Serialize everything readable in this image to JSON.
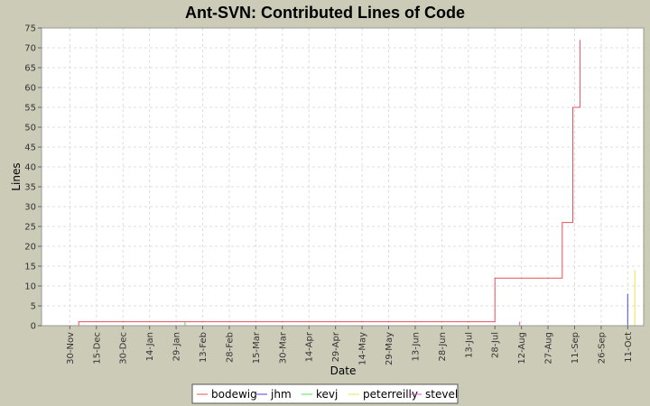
{
  "chart_data": {
    "type": "line",
    "title": "Ant-SVN: Contributed Lines of Code",
    "xlabel": "Date",
    "ylabel": "Lines",
    "ylim": [
      0,
      75
    ],
    "y_ticks": [
      0,
      5,
      10,
      15,
      20,
      25,
      30,
      35,
      40,
      45,
      50,
      55,
      60,
      65,
      70,
      75
    ],
    "x_ticks": [
      "30-Nov",
      "15-Dec",
      "30-Dec",
      "14-Jan",
      "29-Jan",
      "13-Feb",
      "28-Feb",
      "15-Mar",
      "30-Mar",
      "14-Apr",
      "29-Apr",
      "14-May",
      "29-May",
      "13-Jun",
      "28-Jun",
      "13-Jul",
      "28-Jul",
      "12-Aug",
      "27-Aug",
      "11-Sep",
      "26-Sep",
      "11-Oct"
    ],
    "x_tick_day_offsets": [
      0,
      15,
      30,
      45,
      60,
      75,
      90,
      105,
      120,
      135,
      150,
      165,
      180,
      195,
      210,
      225,
      240,
      255,
      270,
      285,
      300,
      315
    ],
    "xlim_day_offsets": [
      -16,
      324
    ],
    "grid": true,
    "legend_position": "bottom",
    "series": [
      {
        "name": "bodewig",
        "color": "#e8505a",
        "step": true,
        "points": [
          [
            -12,
            0
          ],
          [
            5,
            0
          ],
          [
            5,
            1
          ],
          [
            240,
            1
          ],
          [
            240,
            12
          ],
          [
            278,
            12
          ],
          [
            278,
            26
          ],
          [
            284,
            26
          ],
          [
            284,
            55
          ],
          [
            288,
            55
          ],
          [
            288,
            72
          ]
        ]
      },
      {
        "name": "jhm",
        "color": "#4a4ae0",
        "step": true,
        "points": [
          [
            315,
            0
          ],
          [
            315,
            8
          ]
        ]
      },
      {
        "name": "kevj",
        "color": "#55dd55",
        "step": true,
        "points": [
          [
            65,
            0
          ],
          [
            65,
            1
          ]
        ]
      },
      {
        "name": "peterreilly",
        "color": "#f0e050",
        "step": true,
        "points": [
          [
            319,
            0
          ],
          [
            319,
            14
          ]
        ]
      },
      {
        "name": "stevel",
        "color": "#cc55cc",
        "step": true,
        "points": [
          [
            254,
            0
          ],
          [
            254,
            1
          ]
        ]
      }
    ]
  }
}
